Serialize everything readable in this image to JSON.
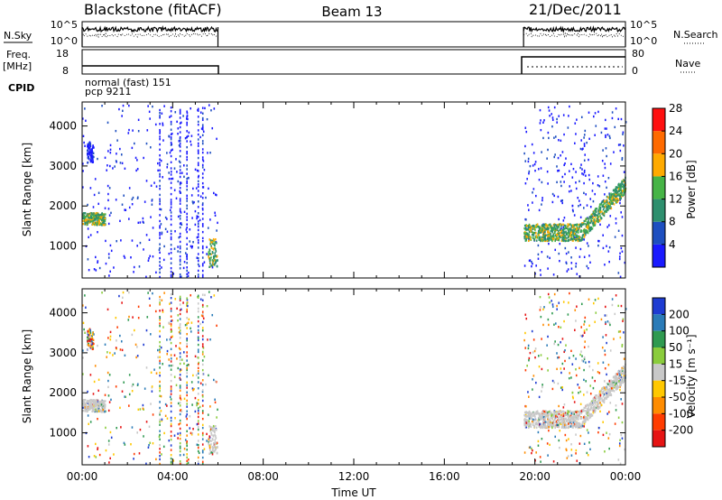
{
  "header": {
    "title_left": "Blackstone (fitACF)",
    "title_center": "Beam 13",
    "title_right": "21/Dec/2011"
  },
  "panels": {
    "nsky": {
      "label": "N.Sky",
      "tick_top": "10^5",
      "tick_bottom": "10^0",
      "right_tick_top": "10^5",
      "right_tick_bottom": "10^0",
      "right_label": "N.Search"
    },
    "freq": {
      "label_line1": "Freq.",
      "label_line2": "[MHz]",
      "tick_top": "18",
      "tick_bottom": "8",
      "right_tick_top": "80",
      "right_tick_bottom": "0",
      "right_label": "Nave"
    },
    "cpid": {
      "label": "CPID",
      "line1": "normal (fast) 151",
      "line2": "pcp 9211"
    }
  },
  "chart_data": [
    {
      "type": "heatmap",
      "name": "power",
      "ylabel": "Slant Range [km]",
      "xlabel": "",
      "y_ticks": [
        "1000",
        "2000",
        "3000",
        "4000"
      ],
      "ylim": [
        200,
        4600
      ],
      "xlim_hours": [
        0,
        24
      ],
      "data_intervals_hours": [
        [
          0,
          6
        ],
        [
          19.5,
          24
        ]
      ],
      "colorbar": {
        "label": "Power [dB]",
        "ticks": [
          "4",
          "8",
          "12",
          "16",
          "20",
          "24",
          "28"
        ],
        "colors": [
          "#1a1aff",
          "#1e4fc0",
          "#2e8f6e",
          "#46b446",
          "#ffaa00",
          "#ff6a00",
          "#ff1010"
        ]
      }
    },
    {
      "type": "heatmap",
      "name": "velocity",
      "ylabel": "Slant Range [km]",
      "xlabel": "Time UT",
      "x_ticks": [
        "00:00",
        "04:00",
        "08:00",
        "12:00",
        "16:00",
        "20:00",
        "00:00"
      ],
      "y_ticks": [
        "1000",
        "2000",
        "3000",
        "4000"
      ],
      "ylim": [
        200,
        4600
      ],
      "xlim_hours": [
        0,
        24
      ],
      "data_intervals_hours": [
        [
          0,
          6
        ],
        [
          19.5,
          24
        ]
      ],
      "colorbar": {
        "label": "Velocity [m s⁻¹]",
        "ticks": [
          "200",
          "100",
          "50",
          "15",
          "-15",
          "-50",
          "-100",
          "-200"
        ],
        "colors": [
          "#1e3cd2",
          "#2a7bb8",
          "#2f9a50",
          "#8acc3c",
          "#c8c8c8",
          "#ffc800",
          "#ff8c00",
          "#ff3c00",
          "#e61414"
        ]
      }
    }
  ]
}
